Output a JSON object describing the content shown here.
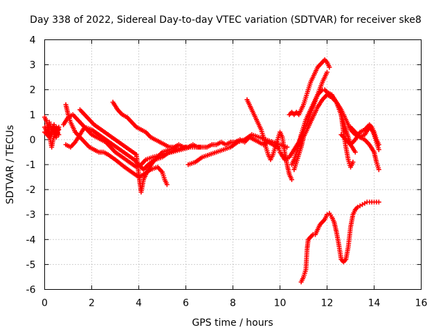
{
  "chart_data": {
    "type": "scatter",
    "title": "Day 338 of 2022, Sidereal Day-to-day VTEC variation (SDTVAR) for receiver ske8",
    "xlabel": "GPS time / hours",
    "ylabel": "SDTVAR / TECUs",
    "xlim": [
      0,
      16
    ],
    "ylim": [
      -6,
      4
    ],
    "xticks": [
      "0",
      "2",
      "4",
      "6",
      "8",
      "10",
      "12",
      "14",
      "16"
    ],
    "yticks": [
      "-6",
      "-5",
      "-4",
      "-3",
      "-2",
      "-1",
      "0",
      "1",
      "2",
      "3",
      "4"
    ],
    "grid": true,
    "marker": "plus",
    "color": "#ff0000",
    "series": [
      {
        "x": [
          0.0,
          0.1,
          0.2,
          0.3,
          0.4,
          0.5,
          0.6
        ],
        "y": [
          0.9,
          0.7,
          0.2,
          -0.3,
          0.2,
          0.5,
          0.4
        ]
      },
      {
        "x": [
          0.0,
          0.1,
          0.2,
          0.3,
          0.4,
          0.5,
          0.6
        ],
        "y": [
          0.5,
          0.3,
          0.7,
          0.4,
          0.6,
          0.1,
          0.5
        ]
      },
      {
        "x": [
          0.0,
          0.2,
          0.4,
          0.6
        ],
        "y": [
          0.3,
          0.1,
          0.5,
          0.2
        ]
      },
      {
        "x": [
          0.9,
          1.0,
          1.1,
          1.2,
          1.3,
          1.5,
          1.7,
          1.9,
          2.1,
          2.3,
          2.5,
          2.7,
          3.0,
          3.4,
          3.7,
          4.0,
          4.2,
          4.5,
          4.8,
          5.0,
          5.1,
          5.2
        ],
        "y": [
          1.4,
          1.0,
          0.7,
          0.5,
          0.3,
          0.1,
          -0.1,
          -0.3,
          -0.4,
          -0.5,
          -0.5,
          -0.6,
          -0.8,
          -1.1,
          -1.3,
          -1.5,
          -1.4,
          -1.2,
          -1.1,
          -1.3,
          -1.6,
          -1.8
        ]
      },
      {
        "x": [
          0.8,
          1.0,
          1.2,
          1.4,
          1.6,
          1.8,
          2.0,
          2.2,
          2.4,
          2.6,
          2.8,
          3.0,
          3.3,
          3.6,
          3.9,
          4.1,
          4.3,
          4.6,
          5.0,
          5.4,
          5.8,
          6.2,
          6.6
        ],
        "y": [
          0.6,
          0.9,
          1.0,
          0.8,
          0.6,
          0.4,
          0.2,
          0.1,
          0.0,
          -0.1,
          -0.3,
          -0.5,
          -0.7,
          -0.9,
          -1.1,
          -1.0,
          -0.8,
          -0.7,
          -0.6,
          -0.5,
          -0.4,
          -0.3,
          -0.3
        ]
      },
      {
        "x": [
          0.9,
          1.1,
          1.3,
          1.5,
          1.7,
          2.0,
          2.3,
          2.6,
          2.9,
          3.2,
          3.5,
          3.8,
          4.0,
          4.2,
          4.4,
          4.7,
          5.0,
          5.3,
          5.6,
          6.0
        ],
        "y": [
          -0.2,
          -0.3,
          -0.1,
          0.2,
          0.5,
          0.4,
          0.2,
          0.0,
          -0.2,
          -0.4,
          -0.6,
          -0.8,
          -1.0,
          -1.2,
          -1.0,
          -0.8,
          -0.7,
          -0.5,
          -0.4,
          -0.3
        ]
      },
      {
        "x": [
          1.5,
          1.7,
          1.9,
          2.1,
          2.4,
          2.7,
          3.0,
          3.3,
          3.6,
          3.9,
          4.0,
          4.1,
          4.2,
          4.4,
          4.6,
          4.8,
          5.0,
          5.3,
          5.6
        ],
        "y": [
          1.2,
          1.0,
          0.8,
          0.6,
          0.4,
          0.2,
          0.0,
          -0.2,
          -0.4,
          -0.6,
          -1.4,
          -2.1,
          -1.6,
          -1.2,
          -0.9,
          -0.7,
          -0.5,
          -0.4,
          -0.3
        ]
      },
      {
        "x": [
          2.9,
          3.1,
          3.3,
          3.5,
          3.7,
          3.9,
          4.1,
          4.3,
          4.5,
          4.7,
          4.9,
          5.1,
          5.3,
          5.5,
          5.7,
          5.9,
          6.1,
          6.3,
          6.5,
          6.7,
          6.9,
          7.1,
          7.3,
          7.5,
          7.7,
          7.9,
          8.1,
          8.3,
          8.5,
          8.7,
          8.9,
          9.1,
          9.3,
          9.5,
          9.7,
          9.9
        ],
        "y": [
          1.5,
          1.2,
          1.0,
          0.9,
          0.7,
          0.5,
          0.4,
          0.3,
          0.1,
          0.0,
          -0.1,
          -0.2,
          -0.3,
          -0.3,
          -0.2,
          -0.3,
          -0.3,
          -0.2,
          -0.3,
          -0.3,
          -0.3,
          -0.2,
          -0.2,
          -0.1,
          -0.2,
          -0.1,
          -0.1,
          0.0,
          -0.1,
          0.1,
          0.0,
          -0.1,
          -0.2,
          -0.1,
          -0.2,
          -0.3
        ]
      },
      {
        "x": [
          6.1,
          6.4,
          6.7,
          7.0,
          7.3,
          7.6,
          7.9,
          8.2,
          8.5,
          8.8,
          9.1,
          9.4,
          9.7,
          10.0,
          10.3
        ],
        "y": [
          -1.0,
          -0.9,
          -0.7,
          -0.6,
          -0.5,
          -0.4,
          -0.3,
          -0.1,
          0.0,
          0.2,
          0.1,
          0.0,
          -0.1,
          -0.2,
          -0.3
        ]
      },
      {
        "x": [
          8.6,
          8.7,
          8.8,
          8.9,
          9.0,
          9.1,
          9.2,
          9.3,
          9.4,
          9.5,
          9.6,
          9.7,
          9.8,
          9.9,
          10.0,
          10.1,
          10.2,
          10.3,
          10.4,
          10.5
        ],
        "y": [
          1.6,
          1.4,
          1.2,
          1.0,
          0.8,
          0.6,
          0.4,
          0.1,
          -0.3,
          -0.6,
          -0.8,
          -0.6,
          -0.3,
          0.0,
          0.3,
          0.1,
          -0.5,
          -1.0,
          -1.4,
          -1.6
        ]
      },
      {
        "x": [
          9.9,
          10.0,
          10.2,
          10.4,
          10.6,
          10.8,
          11.0,
          11.2,
          11.4,
          11.6,
          11.8,
          12.0
        ],
        "y": [
          -0.2,
          -0.5,
          -0.8,
          -0.7,
          -0.4,
          -0.1,
          0.3,
          0.8,
          1.3,
          1.8,
          2.3,
          2.7
        ]
      },
      {
        "x": [
          10.4,
          10.5,
          10.6,
          10.7,
          10.8,
          10.9,
          11.0,
          11.1,
          11.2,
          11.3,
          11.4,
          11.5,
          11.6,
          11.7,
          11.8,
          11.9,
          12.0,
          12.1
        ],
        "y": [
          1.0,
          1.1,
          1.0,
          1.1,
          1.0,
          1.2,
          1.4,
          1.7,
          2.0,
          2.3,
          2.5,
          2.7,
          2.9,
          3.0,
          3.1,
          3.2,
          3.1,
          2.9
        ]
      },
      {
        "x": [
          10.5,
          10.6,
          10.7,
          10.8,
          10.9,
          11.0,
          11.1,
          11.2,
          11.3,
          11.4,
          11.5,
          11.6,
          11.7,
          11.8,
          11.9,
          12.0,
          12.2,
          12.4,
          12.6,
          12.8,
          13.0,
          13.2
        ],
        "y": [
          -1.0,
          -0.8,
          -0.5,
          -0.2,
          0.2,
          0.5,
          0.8,
          1.0,
          1.2,
          1.4,
          1.6,
          1.8,
          1.9,
          2.0,
          2.0,
          1.9,
          1.8,
          1.5,
          1.0,
          0.4,
          -0.2,
          -0.5
        ]
      },
      {
        "x": [
          10.6,
          10.7,
          10.8,
          10.9,
          11.0,
          11.2,
          11.4,
          11.6,
          11.8,
          12.0,
          12.2,
          12.4,
          12.6,
          12.7,
          12.8,
          12.9,
          13.0,
          13.1
        ],
        "y": [
          -1.2,
          -0.9,
          -0.6,
          -0.3,
          0.1,
          0.5,
          0.9,
          1.3,
          1.6,
          1.8,
          1.7,
          1.5,
          1.0,
          0.3,
          -0.3,
          -0.8,
          -1.1,
          -0.9
        ]
      },
      {
        "x": [
          12.0,
          12.2,
          12.4,
          12.6,
          12.8,
          13.0,
          13.2,
          13.4,
          13.6,
          13.8,
          14.0,
          14.1,
          14.2
        ],
        "y": [
          1.8,
          1.7,
          1.5,
          1.2,
          0.8,
          0.4,
          0.2,
          0.1,
          0.0,
          -0.2,
          -0.5,
          -0.9,
          -1.2
        ]
      },
      {
        "x": [
          13.0,
          13.2,
          13.4,
          13.6,
          13.8,
          13.9,
          14.0,
          14.1,
          14.2
        ],
        "y": [
          0.5,
          0.3,
          0.1,
          0.2,
          0.5,
          0.4,
          0.2,
          -0.1,
          -0.4
        ]
      },
      {
        "x": [
          12.6,
          12.8,
          13.0,
          13.2,
          13.4,
          13.6,
          13.7,
          13.8,
          13.9,
          14.0,
          14.1,
          14.2
        ],
        "y": [
          0.2,
          0.0,
          -0.2,
          0.0,
          0.3,
          0.4,
          0.5,
          0.6,
          0.5,
          0.3,
          0.0,
          -0.2
        ]
      },
      {
        "x": [
          10.9,
          11.0,
          11.1,
          11.15,
          11.2,
          11.3,
          11.4,
          11.5,
          11.6,
          11.7,
          11.8,
          11.9,
          12.0,
          12.1,
          12.2,
          12.3,
          12.4,
          12.5,
          12.6,
          12.7,
          12.8,
          12.9,
          13.0,
          13.1,
          13.2,
          13.3,
          13.4,
          13.5,
          13.6,
          13.7,
          13.8,
          13.9,
          14.0,
          14.1,
          14.2
        ],
        "y": [
          -5.7,
          -5.5,
          -5.2,
          -4.4,
          -4.0,
          -3.9,
          -3.8,
          -3.8,
          -3.6,
          -3.4,
          -3.3,
          -3.2,
          -3.0,
          -2.95,
          -3.1,
          -3.3,
          -3.7,
          -4.2,
          -4.8,
          -4.9,
          -4.8,
          -4.3,
          -3.5,
          -3.0,
          -2.8,
          -2.7,
          -2.65,
          -2.6,
          -2.55,
          -2.5,
          -2.5,
          -2.5,
          -2.5,
          -2.5,
          -2.5
        ]
      }
    ]
  }
}
